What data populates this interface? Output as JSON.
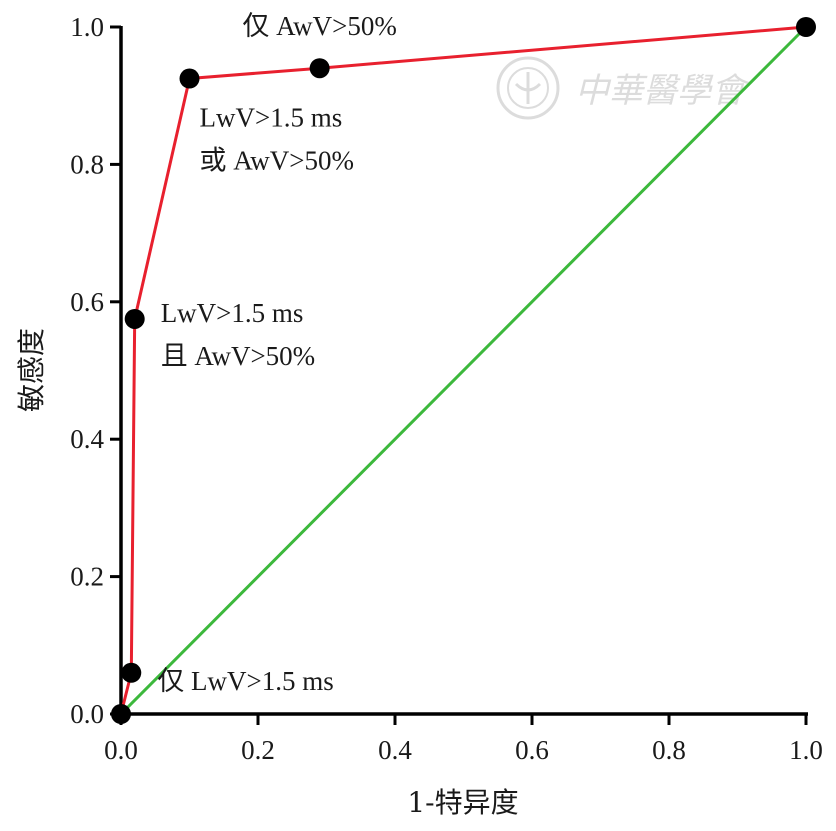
{
  "chart_data": {
    "type": "line",
    "xlabel": "1-特异度",
    "ylabel": "敏感度",
    "xlim": [
      0,
      1.0
    ],
    "ylim": [
      0,
      1.0
    ],
    "x_ticks": [
      "0.0",
      "0.2",
      "0.4",
      "0.6",
      "0.8",
      "1.0"
    ],
    "y_ticks": [
      "0.0",
      "0.2",
      "0.4",
      "0.6",
      "0.8",
      "1.0"
    ],
    "grid": false,
    "series": [
      {
        "color": "#e8202e",
        "marker_color": "#000000",
        "points": [
          {
            "x": 0.0,
            "y": 0.0
          },
          {
            "x": 0.015,
            "y": 0.06
          },
          {
            "x": 0.02,
            "y": 0.575
          },
          {
            "x": 0.1,
            "y": 0.925
          },
          {
            "x": 0.29,
            "y": 0.94
          },
          {
            "x": 1.0,
            "y": 1.0
          }
        ]
      },
      {
        "color": "#3cb83c",
        "points": [
          {
            "x": 0.0,
            "y": 0.0
          },
          {
            "x": 1.0,
            "y": 1.0
          }
        ]
      }
    ],
    "annotations": [
      {
        "lines": [
          "仅 AwV>50%"
        ],
        "x": 0.29,
        "y": 0.94,
        "anchor": "above-center"
      },
      {
        "lines": [
          "LwV>1.5 ms",
          "或 AwV>50%"
        ],
        "x": 0.1,
        "y": 0.925,
        "anchor": "below-right"
      },
      {
        "lines": [
          "LwV>1.5 ms",
          "且 AwV>50%"
        ],
        "x": 0.02,
        "y": 0.575,
        "anchor": "right"
      },
      {
        "lines": [
          "仅 LwV>1.5 ms"
        ],
        "x": 0.015,
        "y": 0.06,
        "anchor": "right"
      }
    ]
  },
  "watermark": {
    "text": "中華醫學會",
    "icon": "society-seal-icon"
  }
}
